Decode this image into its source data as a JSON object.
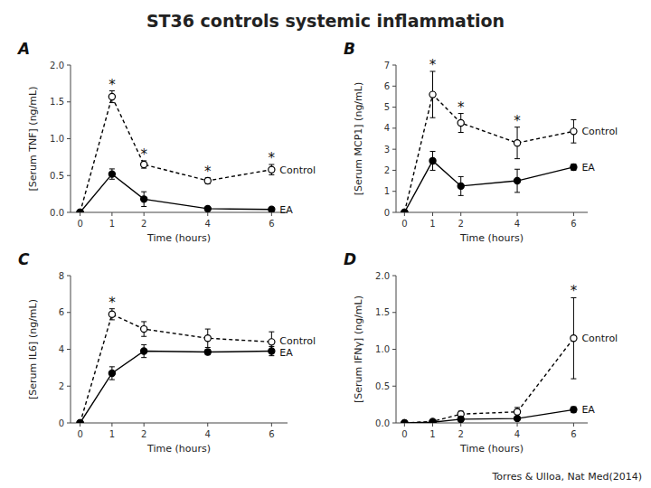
{
  "title": "ST36 controls systemic inflammation",
  "annotations": [
    "Torres & Ulloa, Nat Med(2014)"
  ],
  "chart_data": [
    {
      "type": "line",
      "title": "A",
      "x_label": "Time (hours)",
      "y_label": "[Serum TNF] (ng/mL)",
      "x": [
        0,
        1,
        2,
        4,
        6
      ],
      "xlim": [
        -0.3,
        6.5
      ],
      "xticks": [
        0,
        1,
        2,
        4,
        6
      ],
      "ylim": [
        0,
        2.0
      ],
      "yticks": [
        {
          "value": 0.0,
          "label": "0.0"
        },
        0.5,
        {
          "value": 1.0,
          "label": "1.0"
        },
        1.5,
        {
          "value": 2.0,
          "label": "2.0"
        }
      ],
      "grid": false,
      "series": [
        {
          "name": "Control",
          "color": "#000000",
          "marker": "open-circle",
          "line_style": "dashed",
          "values": [
            0.0,
            1.57,
            0.65,
            0.43,
            0.58
          ],
          "errors": [
            0.0,
            0.08,
            0.05,
            0.04,
            0.07
          ],
          "point_labels": [
            null,
            "*",
            "*",
            "*",
            "*"
          ]
        },
        {
          "name": "EA",
          "color": "#000000",
          "marker": "circle",
          "line_style": "solid",
          "values": [
            0.0,
            0.52,
            0.18,
            0.05,
            0.04
          ],
          "errors": [
            0.0,
            0.07,
            0.1,
            0.02,
            0.02
          ],
          "point_labels": [
            null,
            null,
            null,
            null,
            null
          ]
        }
      ]
    },
    {
      "type": "line",
      "title": "B",
      "x_label": "Time (hours)",
      "y_label": "[Serum MCP1] (ng/mL)",
      "x": [
        0,
        1,
        2,
        4,
        6
      ],
      "xlim": [
        -0.3,
        6.5
      ],
      "xticks": [
        0,
        1,
        2,
        4,
        6
      ],
      "ylim": [
        0,
        7
      ],
      "yticks": [
        0,
        1,
        2,
        3,
        4,
        5,
        6,
        7
      ],
      "grid": false,
      "series": [
        {
          "name": "Control",
          "color": "#000000",
          "marker": "open-circle",
          "line_style": "dashed",
          "values": [
            0.0,
            5.6,
            4.25,
            3.3,
            3.85
          ],
          "errors": [
            0.0,
            1.1,
            0.45,
            0.75,
            0.55
          ],
          "point_labels": [
            null,
            "*",
            "*",
            "*",
            null
          ]
        },
        {
          "name": "EA",
          "color": "#000000",
          "marker": "circle",
          "line_style": "solid",
          "values": [
            0.0,
            2.45,
            1.25,
            1.5,
            2.15
          ],
          "errors": [
            0.0,
            0.45,
            0.45,
            0.55,
            0.15
          ],
          "point_labels": [
            null,
            null,
            null,
            null,
            null
          ]
        }
      ]
    },
    {
      "type": "line",
      "title": "C",
      "x_label": "Time (hours)",
      "y_label": "[Serum IL6] (ng/mL)",
      "x": [
        0,
        1,
        2,
        4,
        6
      ],
      "xlim": [
        -0.3,
        6.5
      ],
      "xticks": [
        0,
        1,
        2,
        4,
        6
      ],
      "ylim": [
        0,
        8
      ],
      "yticks": [
        0,
        2,
        4,
        6,
        8
      ],
      "grid": false,
      "series": [
        {
          "name": "Control",
          "color": "#000000",
          "marker": "open-circle",
          "line_style": "dashed",
          "values": [
            0.0,
            5.9,
            5.1,
            4.6,
            4.4
          ],
          "errors": [
            0.0,
            0.3,
            0.4,
            0.5,
            0.55
          ],
          "point_labels": [
            null,
            "*",
            null,
            null,
            null
          ]
        },
        {
          "name": "EA",
          "color": "#000000",
          "marker": "circle",
          "line_style": "solid",
          "values": [
            0.0,
            2.7,
            3.9,
            3.85,
            3.9
          ],
          "errors": [
            0.0,
            0.35,
            0.35,
            0.15,
            0.25
          ],
          "point_labels": [
            null,
            null,
            null,
            null,
            null
          ]
        }
      ]
    },
    {
      "type": "line",
      "title": "D",
      "x_label": "Time (hours)",
      "y_label": "[Serum IFNγ] (ng/mL)",
      "x": [
        0,
        1,
        2,
        4,
        6
      ],
      "xlim": [
        -0.3,
        6.5
      ],
      "xticks": [
        0,
        1,
        2,
        4,
        6
      ],
      "ylim": [
        0,
        2.0
      ],
      "yticks": [
        {
          "value": 0.0,
          "label": "0.0"
        },
        0.5,
        {
          "value": 1.0,
          "label": "1.0"
        },
        1.5,
        {
          "value": 2.0,
          "label": "2.0"
        }
      ],
      "grid": false,
      "series": [
        {
          "name": "Control",
          "color": "#000000",
          "marker": "open-circle",
          "line_style": "dashed",
          "values": [
            0.0,
            0.02,
            0.12,
            0.15,
            1.15
          ],
          "errors": [
            0.0,
            0.01,
            0.04,
            0.06,
            0.55
          ],
          "point_labels": [
            null,
            null,
            null,
            null,
            "*"
          ]
        },
        {
          "name": "EA",
          "color": "#000000",
          "marker": "circle",
          "line_style": "solid",
          "values": [
            0.0,
            0.01,
            0.05,
            0.06,
            0.18
          ],
          "errors": [
            0.0,
            0.005,
            0.02,
            0.02,
            0.04
          ],
          "point_labels": [
            null,
            null,
            null,
            null,
            null
          ]
        }
      ]
    }
  ]
}
